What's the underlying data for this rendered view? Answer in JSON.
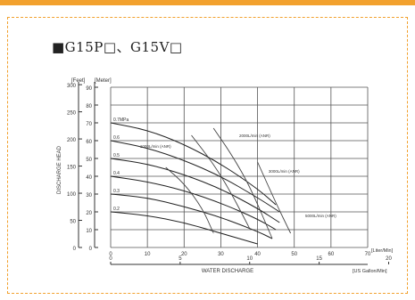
{
  "chart_data": {
    "type": "line",
    "title": "■G15P□、G15V□",
    "xlabel": "WATER DISCHARGE",
    "ylabel": "DISCHARGE HEAD",
    "x_unit_primary": "[Liter/Min]",
    "x_unit_secondary": "[US Gallon/Min]",
    "y_unit_left": "[Feet]",
    "y_unit_right": "[Meter]",
    "xlim": [
      0,
      70
    ],
    "ylim": [
      0,
      90
    ],
    "x_ticks": [
      "0",
      "10",
      "20",
      "30",
      "40",
      "50",
      "60",
      "70"
    ],
    "x2_ticks": [
      "0",
      "5",
      "10",
      "15",
      "20"
    ],
    "y_ticks_meter": [
      "0",
      "10",
      "20",
      "30",
      "40",
      "50",
      "60",
      "70",
      "80",
      "90"
    ],
    "y_ticks_feet": [
      "0",
      "50",
      "100",
      "150",
      "200",
      "250",
      "300"
    ],
    "grid": true,
    "series": [
      {
        "name": "0.7MPa",
        "x": [
          0,
          10,
          20,
          30,
          40,
          45
        ],
        "y": [
          70,
          66,
          58,
          47,
          33,
          24
        ]
      },
      {
        "name": "0.6",
        "x": [
          0,
          10,
          20,
          30,
          40,
          46
        ],
        "y": [
          60,
          56,
          49,
          40,
          28,
          20
        ]
      },
      {
        "name": "0.5",
        "x": [
          0,
          10,
          20,
          30,
          40,
          46
        ],
        "y": [
          50,
          47,
          41,
          33,
          22,
          14
        ]
      },
      {
        "name": "0.4",
        "x": [
          0,
          10,
          20,
          30,
          40,
          45
        ],
        "y": [
          40,
          37,
          32,
          25,
          16,
          10
        ]
      },
      {
        "name": "0.3",
        "x": [
          0,
          10,
          20,
          30,
          40,
          44
        ],
        "y": [
          30,
          28,
          23,
          17,
          9,
          5
        ]
      },
      {
        "name": "0.2",
        "x": [
          0,
          10,
          20,
          30,
          40
        ],
        "y": [
          20,
          18,
          14,
          8,
          2
        ]
      }
    ],
    "consumption_curves": [
      {
        "label": "1000L/min (ANR)",
        "x": [
          15,
          20,
          25,
          28
        ],
        "y": [
          45,
          36,
          22,
          8
        ]
      },
      {
        "label": "2000L/min (ANR)",
        "x": [
          22,
          28,
          33,
          38
        ],
        "y": [
          63,
          47,
          30,
          10
        ]
      },
      {
        "label": "3000L/min (ANR)",
        "x": [
          28,
          33,
          38,
          44
        ],
        "y": [
          67,
          52,
          34,
          5
        ]
      },
      {
        "label": "5000L/min (ANR)",
        "x": [
          40,
          45,
          49
        ],
        "y": [
          48,
          25,
          8
        ]
      }
    ],
    "annotation_labels": [
      {
        "text": "2000L/min (ANR)",
        "x": 35,
        "y": 62
      },
      {
        "text": "1000L/min (ANR)",
        "x": 8,
        "y": 56
      },
      {
        "text": "3000L/min (ANR)",
        "x": 43,
        "y": 42
      },
      {
        "text": "5000L/min (ANR)",
        "x": 53,
        "y": 17
      }
    ]
  }
}
